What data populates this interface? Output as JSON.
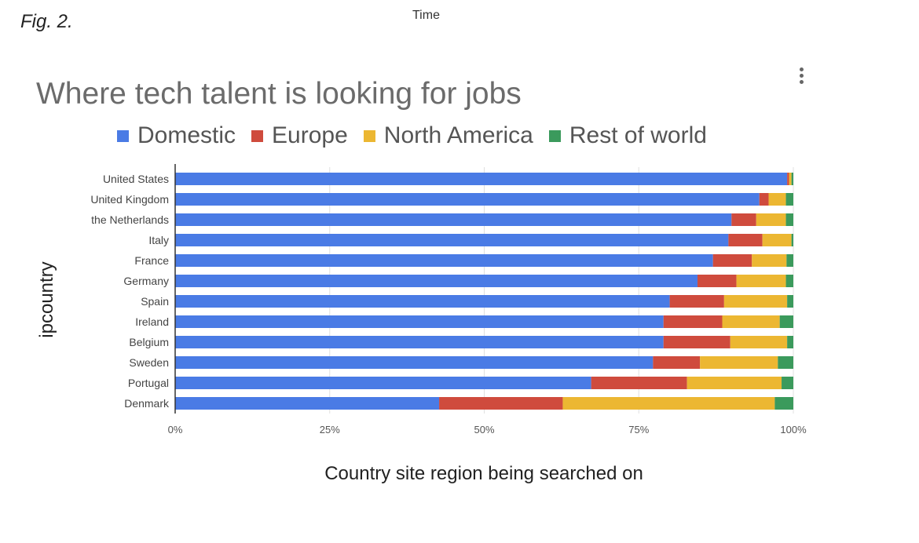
{
  "figure_label": "Fig. 2.",
  "top_label": "Time",
  "colors": {
    "Domestic": "#4a7be5",
    "Europe": "#cf4b3d",
    "North America": "#ecb732",
    "Rest of world": "#3b9a5c"
  },
  "chart_data": {
    "type": "bar",
    "orientation": "horizontal",
    "stacked": true,
    "title": "Where tech talent is looking for jobs",
    "xlabel": "Country site region being searched on",
    "ylabel": "ipcountry",
    "xlim": [
      0,
      100
    ],
    "x_ticks": [
      "0%",
      "25%",
      "50%",
      "75%",
      "100%"
    ],
    "grid": true,
    "legend_position": "top",
    "categories": [
      "United States",
      "United Kingdom",
      "the Netherlands",
      "Italy",
      "France",
      "Germany",
      "Spain",
      "Ireland",
      "Belgium",
      "Sweden",
      "Portugal",
      "Denmark"
    ],
    "series": [
      {
        "name": "Domestic",
        "values": [
          99,
          94.5,
          90,
          89.5,
          87,
          84.5,
          80,
          79,
          79,
          77.3,
          67.3,
          42.7
        ]
      },
      {
        "name": "Europe",
        "values": [
          0.3,
          1.5,
          4,
          5.5,
          6.3,
          6.3,
          8.8,
          9.5,
          10.8,
          7.6,
          15.5,
          20
        ]
      },
      {
        "name": "North America",
        "values": [
          0.4,
          2.8,
          4.8,
          4.7,
          5.6,
          8,
          10.2,
          9.3,
          9.2,
          12.6,
          15.3,
          34.3
        ]
      },
      {
        "name": "Rest of world",
        "values": [
          0.3,
          1.2,
          1.2,
          0.3,
          1.1,
          1.2,
          1,
          2.2,
          1,
          2.5,
          1.9,
          3
        ]
      }
    ]
  }
}
